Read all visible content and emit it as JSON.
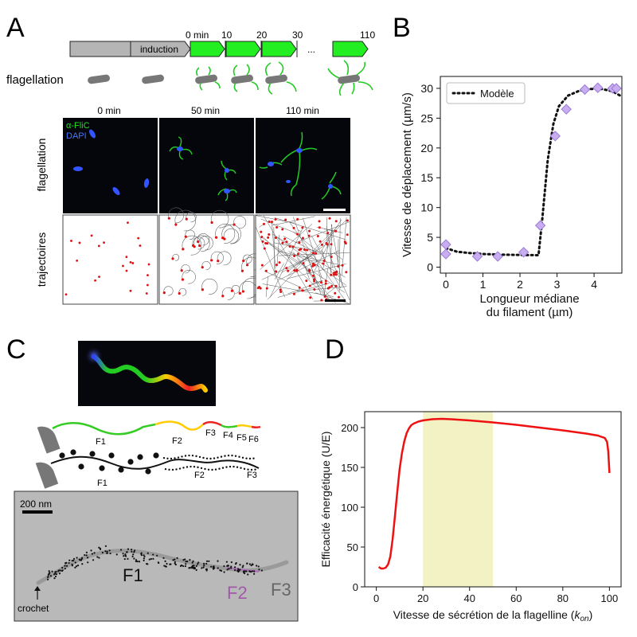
{
  "panels": {
    "A": {
      "letter": "A",
      "timeline": {
        "induction_label": "induction",
        "time_labels": [
          "0 min",
          "10",
          "20",
          "30",
          "...",
          "110"
        ]
      },
      "flagellation_row_label": "flagellation",
      "image_col_labels": [
        "0 min",
        "50 min",
        "110 min"
      ],
      "row_label_top": "flagellation",
      "row_label_bottom": "trajectoires",
      "stain_labels": [
        "α-FliC",
        "DAPI"
      ],
      "colors": {
        "stain_flic": "#22cc22",
        "stain_dapi": "#3366ff",
        "timeline_green": "#22ee22",
        "timeline_gray": "#b5b5b5"
      }
    },
    "B": {
      "letter": "B",
      "legend_label": "Modèle",
      "colors": {
        "points": "#c8aef0",
        "point_edge": "#9a79d6",
        "model": "#111111"
      }
    },
    "C": {
      "letter": "C",
      "top_segment_labels": [
        "F1",
        "F2",
        "F3",
        "F4",
        "F5",
        "F6"
      ],
      "bottom_segment_labels": [
        "F1",
        "F2",
        "F3"
      ],
      "scale_bar_label": "200 nm",
      "em_labels": {
        "f1": "F1",
        "f2": "F2",
        "f3": "F3",
        "hook": "crochet"
      },
      "colors": {
        "green": "#33cc22",
        "yellow": "#ffcc00",
        "red": "#ee2222",
        "f2_label": "#a05aa8",
        "f3_label": "#666666"
      }
    },
    "D": {
      "letter": "D",
      "highlight_range": [
        20,
        50
      ],
      "colors": {
        "line": "#ee1111",
        "highlight": "#f2f2c4"
      }
    }
  },
  "chart_data": [
    {
      "id": "B",
      "type": "scatter",
      "xlabel": "Longueur médiane du filament (µm)",
      "xlabel_lines": [
        "Longueur médiane",
        "du filament (µm)"
      ],
      "ylabel": "Vitesse de déplacement (µm/s)",
      "xlim": [
        -0.15,
        4.75
      ],
      "ylim": [
        -1,
        32
      ],
      "xticks": [
        0,
        1,
        2,
        3,
        4
      ],
      "yticks": [
        0,
        5,
        10,
        15,
        20,
        25,
        30
      ],
      "grid": false,
      "legend_position": "top-left",
      "series": [
        {
          "kind": "scatter",
          "x": [
            0.0,
            0.0,
            0.85,
            1.4,
            2.1,
            2.55,
            2.95,
            3.25,
            3.75,
            4.1,
            4.5,
            4.6
          ],
          "y": [
            3.8,
            2.2,
            1.8,
            1.8,
            2.5,
            7.0,
            22.0,
            26.5,
            29.8,
            30.1,
            30.0,
            30.0
          ]
        },
        {
          "name": "Modèle",
          "kind": "line-dotted",
          "x": [
            0,
            0.3,
            0.6,
            1.0,
            1.5,
            2.0,
            2.5,
            2.6,
            2.75,
            2.9,
            3.05,
            3.3,
            3.6,
            3.9,
            4.2,
            4.5,
            4.7
          ],
          "y": [
            3.2,
            2.6,
            2.4,
            2.2,
            2.1,
            2.05,
            2.0,
            8.0,
            18.0,
            24.0,
            27.0,
            28.8,
            29.6,
            29.9,
            29.9,
            29.5,
            28.8
          ]
        }
      ]
    },
    {
      "id": "D",
      "type": "line",
      "xlabel": "Vitesse de sécrétion de la flagelline (kon)",
      "xlabel_main": "Vitesse de sécrétion de la flagelline (",
      "xlabel_k": "k",
      "xlabel_sub": "on",
      "xlabel_end": ")",
      "ylabel": "Efficacité énergétique (U/E)",
      "xlim": [
        -5,
        105
      ],
      "ylim": [
        0,
        220
      ],
      "xticks": [
        0,
        20,
        40,
        60,
        80,
        100
      ],
      "yticks": [
        0,
        50,
        100,
        150,
        200
      ],
      "grid": false,
      "series": [
        {
          "x": [
            1,
            2,
            3,
            4,
            5,
            6,
            7,
            8,
            9,
            10,
            11,
            12,
            13,
            14,
            15,
            16,
            18,
            20,
            24,
            28,
            32,
            40,
            50,
            60,
            70,
            80,
            90,
            95,
            98,
            99,
            99.5,
            100
          ],
          "y": [
            25,
            23,
            23,
            24,
            28,
            38,
            60,
            90,
            120,
            148,
            168,
            183,
            193,
            199,
            203,
            205,
            207.5,
            209,
            210.5,
            211,
            210.5,
            209,
            206.5,
            203.5,
            200,
            196.5,
            192.5,
            190,
            187,
            182,
            170,
            143
          ]
        }
      ]
    }
  ]
}
